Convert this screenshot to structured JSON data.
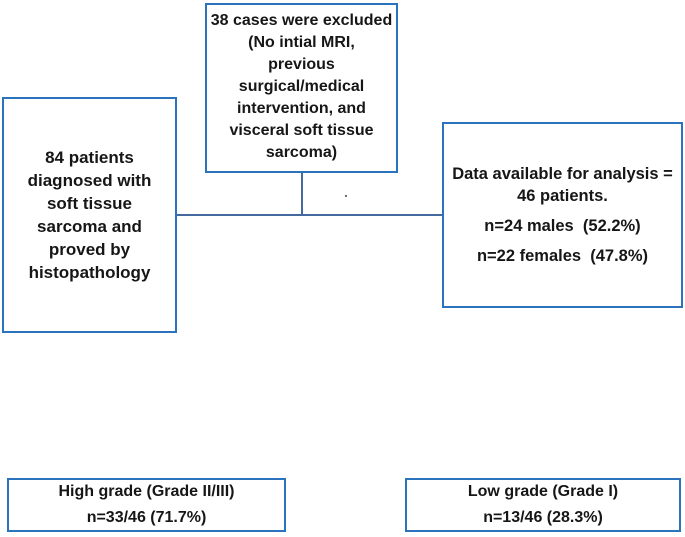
{
  "colors": {
    "box_border": "#2b74bd",
    "connector_line": "#44699e",
    "text": "#161616",
    "background": "#ffffff"
  },
  "boxes": {
    "excluded": {
      "text": "38 cases were excluded\n(No intial MRI,\nprevious\nsurgical/medical\nintervention, and\nvisceral soft tissue\nsarcoma)"
    },
    "cohort": {
      "text": "84 patients\ndiagnosed with\nsoft tissue\nsarcoma and\nproved by\nhistopathology"
    },
    "analysis": {
      "total": "Data available for analysis =\n46 patients.",
      "males": "n=24 males  (52.2%)",
      "females": "n=22 females  (47.8%)"
    },
    "high_grade": {
      "text": "High grade (Grade II/III)\nn=33/46 (71.7%)"
    },
    "low_grade": {
      "text": "Low grade (Grade I)\nn=13/46 (28.3%)"
    }
  },
  "stray_dot": "."
}
